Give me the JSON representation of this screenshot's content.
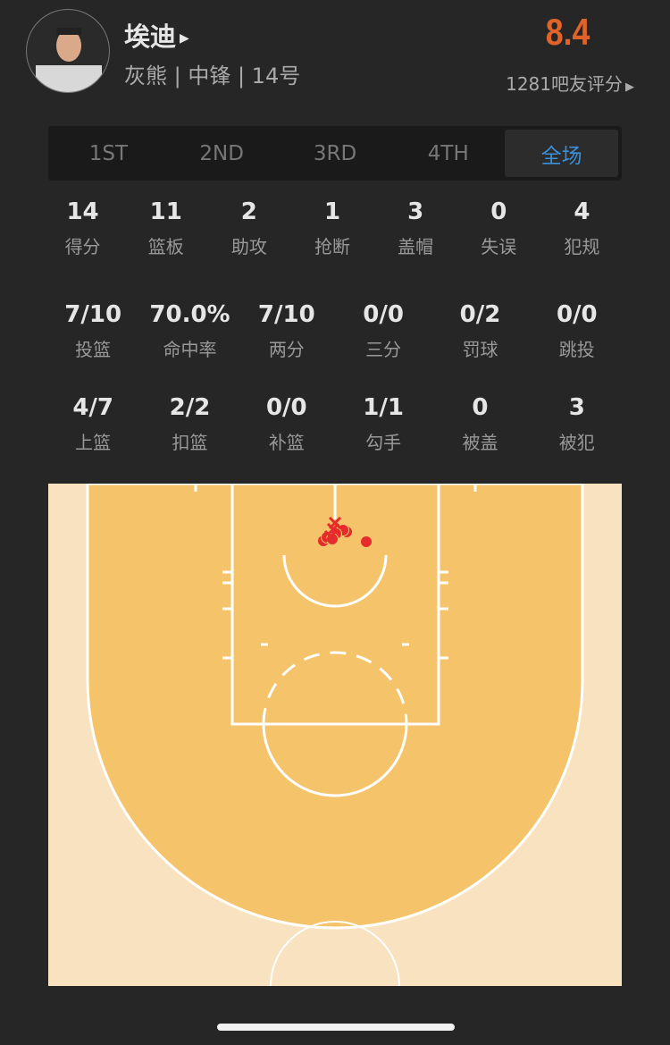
{
  "player": {
    "name": "埃迪",
    "info": "灰熊 | 中锋 | 14号",
    "rating": "8.4",
    "rating_count": "1281吧友评分"
  },
  "tabs": [
    {
      "label": "1ST"
    },
    {
      "label": "2ND"
    },
    {
      "label": "3RD"
    },
    {
      "label": "4TH"
    },
    {
      "label": "全场",
      "active": true
    }
  ],
  "stats_row1": [
    {
      "v": "14",
      "l": "得分"
    },
    {
      "v": "11",
      "l": "篮板"
    },
    {
      "v": "2",
      "l": "助攻"
    },
    {
      "v": "1",
      "l": "抢断"
    },
    {
      "v": "3",
      "l": "盖帽"
    },
    {
      "v": "0",
      "l": "失误"
    },
    {
      "v": "4",
      "l": "犯规"
    }
  ],
  "stats_row2": [
    {
      "v": "7/10",
      "l": "投篮"
    },
    {
      "v": "70.0%",
      "l": "命中率"
    },
    {
      "v": "7/10",
      "l": "两分"
    },
    {
      "v": "0/0",
      "l": "三分"
    },
    {
      "v": "0/2",
      "l": "罚球"
    },
    {
      "v": "0/0",
      "l": "跳投"
    }
  ],
  "stats_row3": [
    {
      "v": "4/7",
      "l": "上篮"
    },
    {
      "v": "2/2",
      "l": "扣篮"
    },
    {
      "v": "0/0",
      "l": "补篮"
    },
    {
      "v": "1/1",
      "l": "勾手"
    },
    {
      "v": "0",
      "l": "被盖"
    },
    {
      "v": "3",
      "l": "被犯"
    }
  ],
  "colors": {
    "rating": "#e0642a",
    "active_tab": "#3b8fd9",
    "made": "#e52b2b",
    "missed": "#e52b2b",
    "court_inner": "#f5c46a",
    "court_outer": "#f8e2c0"
  },
  "shots": [
    {
      "result": "made"
    },
    {
      "result": "made"
    },
    {
      "result": "made"
    },
    {
      "result": "made"
    },
    {
      "result": "made"
    },
    {
      "result": "made"
    },
    {
      "result": "made"
    },
    {
      "result": "missed"
    },
    {
      "result": "missed"
    },
    {
      "result": "missed"
    }
  ]
}
